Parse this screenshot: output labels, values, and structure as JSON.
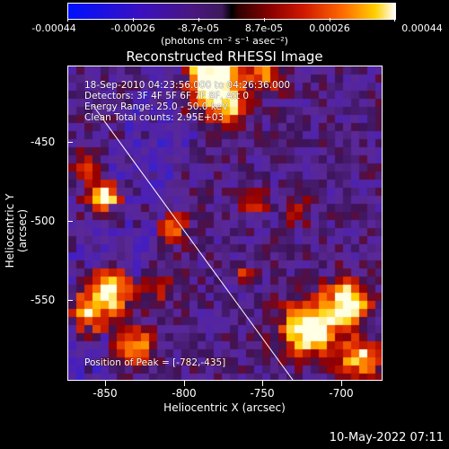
{
  "colorbar": {
    "ticks": [
      "-0.00044",
      "-0.00026",
      "-8.7e-05",
      "8.7e-05",
      "0.00026",
      "0.00044"
    ],
    "units": "(photons cm⁻² s⁻¹ asec⁻²)"
  },
  "title": "Reconstructed RHESSI Image",
  "info": {
    "time_range": "18-Sep-2010 04:23:56.000 to 04:26:36.000",
    "detectors": "Detectors: 3F 4F 5F 6F 7F 8F, Att 0",
    "energy": "Energy Range: 25.0 - 50.0 keV",
    "clean": "Clean    Total counts: 2.95E+03",
    "peak": "Position of Peak = [-782,-435]"
  },
  "x_axis": {
    "label": "Heliocentric X (arcsec)",
    "ticks": [
      "-850",
      "-800",
      "-750",
      "-700"
    ]
  },
  "y_axis": {
    "label": "Heliocentric Y (arcsec)",
    "ticks": [
      "-450",
      "-500",
      "-550"
    ]
  },
  "timestamp": "10-May-2022 07:11"
}
